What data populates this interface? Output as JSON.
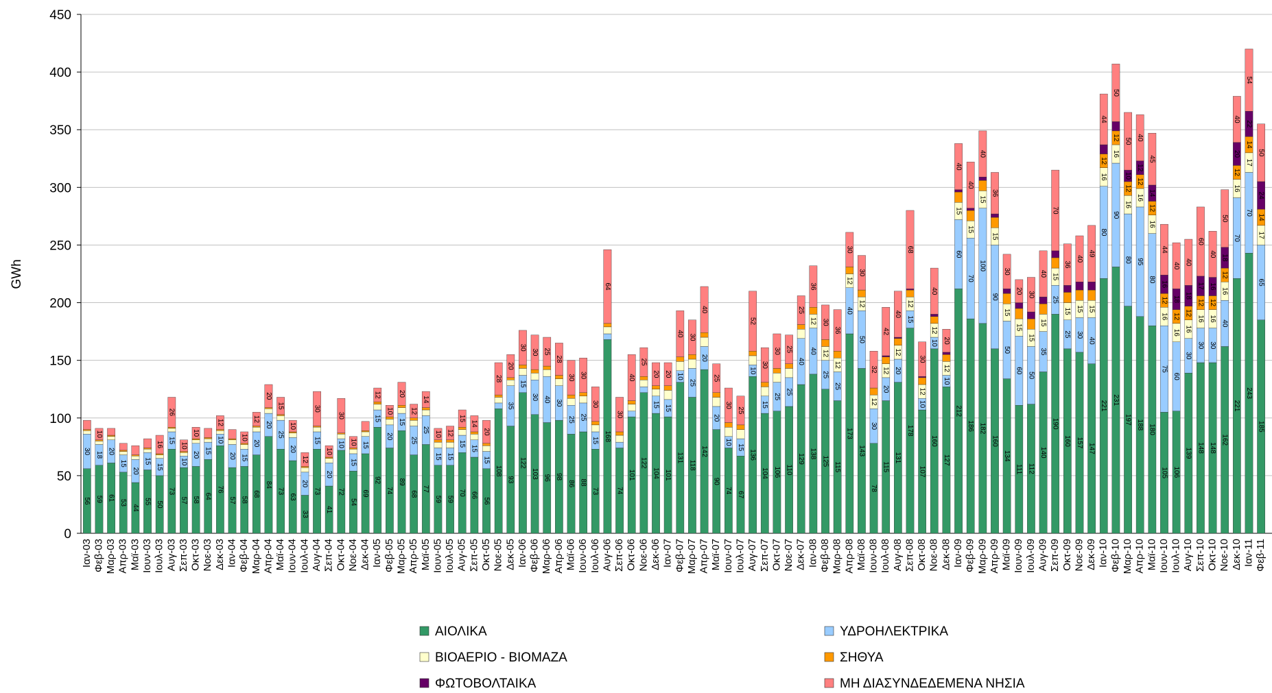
{
  "chart_data": {
    "type": "stacked-bar",
    "y_label": "GWh",
    "categories": [
      "Ιαν-03",
      "Φεβ-03",
      "Μαρ-03",
      "Απρ-03",
      "Μαϊ-03",
      "Ιουν-03",
      "Ιουλ-03",
      "Αυγ-03",
      "Σεπ-03",
      "Οκτ-03",
      "Νοε-03",
      "Δεκ-03",
      "Ιαν-04",
      "Φεβ-04",
      "Μαρ-04",
      "Απρ-04",
      "Μαϊ-04",
      "Ιουν-04",
      "Ιουλ-04",
      "Αυγ-04",
      "Σεπ-04",
      "Οκτ-04",
      "Νοε-04",
      "Δεκ-04",
      "Ιαν-05",
      "Φεβ-05",
      "Μαρ-05",
      "Απρ-05",
      "Μαϊ-05",
      "Ιουν-05",
      "Ιουλ-05",
      "Αυγ-05",
      "Σεπ-05",
      "Οκτ-05",
      "Νοε-05",
      "Δεκ-05",
      "Ιαν-06",
      "Φεβ-06",
      "Μαρ-06",
      "Απρ-06",
      "Μαϊ-06",
      "Ιουν-06",
      "Ιουλ-06",
      "Αυγ-06",
      "Σεπ-06",
      "Οκτ-06",
      "Νοε-06",
      "Δεκ-06",
      "Ιαν-07",
      "Φεβ-07",
      "Μαρ-07",
      "Απρ-07",
      "Μαϊ-07",
      "Ιουν-07",
      "Ιουλ-07",
      "Αυγ-07",
      "Σεπ-07",
      "Οκτ-07",
      "Νοε-07",
      "Δεκ-07",
      "Ιαν-08",
      "Φεβ-08",
      "Μαρ-08",
      "Απρ-08",
      "Μαϊ-08",
      "Ιουν-08",
      "Ιουλ-08",
      "Αυγ-08",
      "Σεπ-08",
      "Οκτ-08",
      "Νοε-08",
      "Δεκ-08",
      "Ιαν-09",
      "Φεβ-09",
      "Μαρ-09",
      "Απρ-09",
      "Μαϊ-09",
      "Ιουν-09",
      "Ιουλ-09",
      "Αυγ-09",
      "Σεπ-09",
      "Οκτ-09",
      "Νοε-09",
      "Δεκ-09",
      "Ιαν-10",
      "Φεβ-10",
      "Μαρ-10",
      "Απρ-10",
      "Μαϊ-10",
      "Ιουν-10",
      "Ιουλ-10",
      "Αυγ-10",
      "Σεπ-10",
      "Οκτ-10",
      "Νοε-10",
      "Δεκ-10",
      "Ιαν-11",
      "Φεβ-11"
    ],
    "series": [
      {
        "name": "ΑΙΟΛΙΚΑ",
        "color": "#339966",
        "values": [
          56,
          59,
          61,
          53,
          44,
          55,
          50,
          73,
          57,
          58,
          64,
          76,
          57,
          58,
          68,
          84,
          73,
          63,
          33,
          73,
          41,
          72,
          54,
          69,
          92,
          74,
          89,
          68,
          77,
          59,
          59,
          70,
          66,
          56,
          108,
          93,
          122,
          103,
          96,
          98,
          86,
          88,
          73,
          168,
          74,
          101,
          122,
          104,
          101,
          131,
          118,
          142,
          90,
          74,
          67,
          136,
          104,
          106,
          110,
          129,
          138,
          125,
          115,
          173,
          143,
          78,
          115,
          131,
          178,
          107,
          160,
          127,
          212,
          186,
          182,
          160,
          134,
          111,
          112,
          140,
          190,
          160,
          157,
          147,
          221,
          231,
          197,
          188,
          180,
          105,
          106,
          139,
          148,
          148,
          162,
          221,
          243,
          185
        ]
      },
      {
        "name": "ΥΔΡΟΗΛΕΚΤΡΙΚΑ",
        "color": "#99ccff",
        "values": [
          30,
          18,
          20,
          15,
          20,
          15,
          15,
          15,
          10,
          20,
          15,
          10,
          20,
          15,
          20,
          20,
          25,
          20,
          20,
          15,
          20,
          10,
          15,
          15,
          15,
          20,
          15,
          25,
          25,
          15,
          15,
          15,
          15,
          15,
          5,
          35,
          15,
          30,
          40,
          30,
          25,
          25,
          15,
          5,
          5,
          5,
          5,
          15,
          15,
          10,
          25,
          20,
          20,
          10,
          15,
          10,
          15,
          25,
          25,
          40,
          40,
          25,
          25,
          40,
          50,
          30,
          20,
          20,
          15,
          10,
          10,
          10,
          60,
          70,
          100,
          90,
          50,
          60,
          50,
          35,
          25,
          25,
          30,
          40,
          80,
          90,
          80,
          95,
          80,
          75,
          60,
          30,
          30,
          30,
          40,
          70,
          70,
          65
        ]
      },
      {
        "name": "ΒΙΟΑΕΡΙΟ - ΒΙΟΜΑΖΑ",
        "color": "#ffffcc",
        "values": [
          3,
          3,
          3,
          3,
          3,
          3,
          3,
          3,
          3,
          3,
          3,
          3,
          4,
          4,
          4,
          4,
          4,
          4,
          4,
          4,
          4,
          4,
          4,
          4,
          5,
          5,
          5,
          5,
          5,
          5,
          5,
          5,
          5,
          5,
          5,
          5,
          6,
          6,
          6,
          6,
          6,
          6,
          6,
          6,
          6,
          6,
          6,
          6,
          8,
          8,
          8,
          8,
          8,
          8,
          8,
          8,
          8,
          8,
          8,
          8,
          12,
          12,
          12,
          12,
          12,
          12,
          12,
          12,
          12,
          12,
          12,
          12,
          15,
          15,
          15,
          15,
          15,
          15,
          15,
          15,
          15,
          15,
          15,
          15,
          16,
          16,
          16,
          16,
          16,
          16,
          16,
          16,
          16,
          16,
          16,
          16,
          17,
          17
        ]
      },
      {
        "name": "ΣΗΘΥΑ",
        "color": "#ff9900",
        "values": [
          1,
          1,
          1,
          1,
          1,
          1,
          1,
          1,
          1,
          1,
          1,
          1,
          1,
          1,
          1,
          1,
          1,
          1,
          1,
          1,
          1,
          1,
          1,
          1,
          2,
          2,
          2,
          2,
          2,
          2,
          2,
          2,
          2,
          2,
          2,
          2,
          3,
          3,
          3,
          3,
          3,
          3,
          3,
          3,
          3,
          3,
          3,
          3,
          4,
          4,
          4,
          4,
          4,
          4,
          4,
          4,
          4,
          4,
          4,
          4,
          6,
          6,
          6,
          6,
          6,
          6,
          6,
          6,
          6,
          6,
          6,
          6,
          9,
          9,
          9,
          9,
          9,
          9,
          9,
          9,
          9,
          9,
          9,
          9,
          12,
          12,
          12,
          12,
          12,
          12,
          12,
          12,
          12,
          12,
          12,
          12,
          14,
          14
        ]
      },
      {
        "name": "ΦΩΤΟΒΟΛΤΑΙΚΑ",
        "color": "#660066",
        "values": [
          0,
          0,
          0,
          0,
          0,
          0,
          0,
          0,
          0,
          0,
          0,
          0,
          0,
          0,
          0,
          0,
          0,
          0,
          0,
          0,
          0,
          0,
          0,
          0,
          0,
          0,
          0,
          0,
          0,
          0,
          0,
          0,
          0,
          0,
          0,
          0,
          0,
          0,
          0,
          0,
          0,
          0,
          0,
          0,
          0,
          0,
          0,
          0,
          0,
          0,
          0,
          0,
          0,
          0,
          0,
          0,
          0,
          0,
          0,
          0,
          0,
          0,
          0,
          0,
          0,
          0,
          1,
          1,
          1,
          1,
          2,
          2,
          2,
          2,
          3,
          3,
          4,
          5,
          6,
          6,
          6,
          6,
          7,
          7,
          8,
          8,
          10,
          12,
          14,
          16,
          18,
          18,
          17,
          16,
          18,
          20,
          22,
          24
        ]
      },
      {
        "name": "ΜΗ ΔΙΑΣΥΝΔΕΔΕΜΕΝΑ ΝΗΣΙΑ",
        "color": "#ff8080",
        "values": [
          8,
          10,
          6,
          6,
          8,
          8,
          16,
          26,
          10,
          10,
          8,
          12,
          8,
          10,
          12,
          20,
          15,
          10,
          12,
          30,
          10,
          30,
          10,
          8,
          12,
          10,
          20,
          12,
          14,
          10,
          12,
          15,
          14,
          20,
          28,
          20,
          30,
          30,
          25,
          28,
          30,
          30,
          30,
          64,
          30,
          40,
          25,
          20,
          20,
          40,
          30,
          40,
          25,
          30,
          25,
          52,
          30,
          30,
          25,
          25,
          36,
          30,
          36,
          30,
          30,
          32,
          42,
          40,
          68,
          30,
          40,
          20,
          40,
          40,
          40,
          36,
          30,
          20,
          30,
          40,
          70,
          36,
          40,
          49,
          44,
          50,
          50,
          40,
          45,
          44,
          40,
          40,
          60,
          40,
          50,
          40,
          54,
          50
        ]
      }
    ],
    "ylim": [
      0,
      450
    ],
    "yticks": [
      0,
      50,
      100,
      150,
      200,
      250,
      300,
      350,
      400,
      450
    ],
    "grid": true
  }
}
